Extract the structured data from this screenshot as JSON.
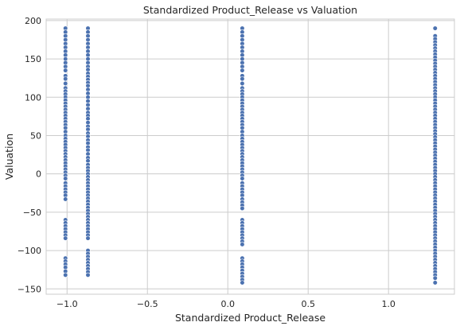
{
  "chart_data": {
    "type": "scatter",
    "title": "Standardized Product_Release vs Valuation",
    "xlabel": "Standardized Product_Release",
    "ylabel": "Valuation",
    "xlim": [
      -1.13,
      1.41
    ],
    "ylim": [
      -157,
      202
    ],
    "xticks": [
      -1.0,
      -0.5,
      0.0,
      0.5,
      1.0
    ],
    "xtick_labels": [
      "−1.0",
      "−0.5",
      "0.0",
      "0.5",
      "1.0"
    ],
    "yticks": [
      -150,
      -100,
      -50,
      0,
      50,
      100,
      150,
      200
    ],
    "ytick_labels": [
      "−150",
      "−100",
      "−50",
      "0",
      "50",
      "100",
      "150",
      "200"
    ],
    "grid": true,
    "color": "#4c72b0",
    "series": [
      {
        "x": -1.01,
        "values": [
          190,
          185,
          180,
          175,
          170,
          165,
          160,
          155,
          150,
          145,
          140,
          135,
          128,
          124,
          118,
          112,
          108,
          104,
          100,
          96,
          92,
          88,
          84,
          80,
          76,
          72,
          68,
          64,
          60,
          55,
          50,
          46,
          42,
          38,
          34,
          30,
          26,
          22,
          18,
          14,
          10,
          6,
          2,
          -2,
          -6,
          -12,
          -16,
          -20,
          -24,
          -28,
          -33,
          -60,
          -64,
          -68,
          -72,
          -76,
          -80,
          -84,
          -110,
          -114,
          -118,
          -122,
          -127,
          -132
        ]
      },
      {
        "x": -0.87,
        "values": [
          190,
          185,
          180,
          175,
          170,
          165,
          160,
          155,
          150,
          145,
          140,
          136,
          131,
          127,
          123,
          119,
          115,
          110,
          105,
          100,
          95,
          90,
          85,
          80,
          76,
          72,
          67,
          62,
          58,
          53,
          49,
          44,
          40,
          35,
          31,
          26,
          21,
          17,
          12,
          8,
          4,
          0,
          -4,
          -8,
          -12,
          -16,
          -20,
          -24,
          -28,
          -32,
          -36,
          -40,
          -44,
          -48,
          -52,
          -56,
          -60,
          -64,
          -68,
          -72,
          -76,
          -80,
          -84,
          -100,
          -104,
          -108,
          -112,
          -116,
          -120,
          -124,
          -128,
          -132
        ]
      },
      {
        "x": 0.09,
        "values": [
          190,
          185,
          180,
          175,
          170,
          165,
          160,
          155,
          150,
          145,
          140,
          135,
          128,
          124,
          118,
          112,
          108,
          104,
          100,
          96,
          92,
          88,
          84,
          80,
          76,
          72,
          68,
          64,
          60,
          55,
          50,
          46,
          42,
          38,
          34,
          30,
          26,
          22,
          18,
          14,
          10,
          6,
          2,
          -2,
          -6,
          -12,
          -16,
          -20,
          -24,
          -28,
          -33,
          -37,
          -41,
          -45,
          -60,
          -64,
          -68,
          -72,
          -76,
          -80,
          -84,
          -88,
          -92,
          -110,
          -114,
          -118,
          -122,
          -126,
          -130,
          -134,
          -138,
          -142
        ]
      },
      {
        "x": 1.29,
        "values": [
          190,
          180,
          176,
          172,
          168,
          164,
          160,
          156,
          152,
          148,
          144,
          140,
          136,
          132,
          128,
          124,
          120,
          116,
          112,
          108,
          104,
          100,
          96,
          92,
          88,
          84,
          80,
          76,
          72,
          68,
          64,
          60,
          56,
          52,
          48,
          44,
          40,
          36,
          32,
          28,
          24,
          20,
          16,
          12,
          8,
          4,
          0,
          -4,
          -8,
          -12,
          -16,
          -20,
          -24,
          -28,
          -32,
          -36,
          -40,
          -44,
          -48,
          -52,
          -56,
          -60,
          -64,
          -68,
          -72,
          -76,
          -80,
          -84,
          -88,
          -92,
          -96,
          -100,
          -104,
          -108,
          -112,
          -116,
          -120,
          -124,
          -128,
          -132,
          -136,
          -142
        ]
      }
    ]
  }
}
